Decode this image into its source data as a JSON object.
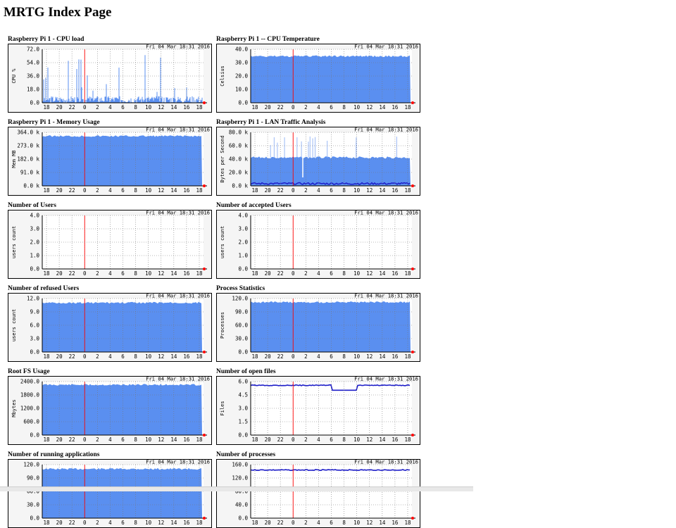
{
  "page": {
    "title": "MRTG Index Page"
  },
  "timestamp": "Fri 04 Mar 18:31 2016",
  "x_ticks": [
    "18",
    "20",
    "22",
    "0",
    "2",
    "4",
    "6",
    "8",
    "10",
    "12",
    "14",
    "16",
    "18"
  ],
  "colors": {
    "area": "#5a8ff0",
    "line": "#1d1dc8",
    "now_marker": "#ff0000",
    "grid": "#888888",
    "frame": "#000000"
  },
  "graphs": [
    {
      "title": "Raspberry Pi 1 - CPU load",
      "ylabel": "CPU %",
      "yticks": [
        "72.0",
        "54.0",
        "36.0",
        "18.0",
        "0.0"
      ],
      "style": "spiky",
      "level": 0.12
    },
    {
      "title": "Raspberry Pi 1 -- CPU Temperature",
      "ylabel": "Celsius",
      "yticks": [
        "40.0",
        "30.0",
        "20.0",
        "10.0",
        "0.0"
      ],
      "style": "area",
      "level": 0.87
    },
    {
      "title": "Raspberry Pi 1 - Memory Usage",
      "ylabel": "Mem MB",
      "yticks": [
        "364.0 k",
        "273.0 k",
        "182.0 k",
        "91.0 k",
        "0.0 k"
      ],
      "style": "area",
      "level": 0.93
    },
    {
      "title": "Raspberry Pi 1 - LAN Traffic Analysis",
      "ylabel": "Bytes per Second",
      "yticks": [
        "80.0 k",
        "60.0 k",
        "40.0 k",
        "20.0 k",
        "0.0 k"
      ],
      "style": "traffic",
      "level": 0.53
    },
    {
      "title": "Number of Users",
      "ylabel": "users count",
      "yticks": [
        "4.0",
        "3.0",
        "2.0",
        "1.0",
        "0.0"
      ],
      "style": "empty",
      "level": 0
    },
    {
      "title": "Number of accepted Users",
      "ylabel": "users count",
      "yticks": [
        "4.0",
        "3.0",
        "2.0",
        "1.0",
        "0.0"
      ],
      "style": "empty",
      "level": 0
    },
    {
      "title": "Number of refused Users",
      "ylabel": "users count",
      "yticks": [
        "12.0",
        "9.0",
        "6.0",
        "3.0",
        "0.0"
      ],
      "style": "area",
      "level": 0.92
    },
    {
      "title": "Process Statistics",
      "ylabel": "Processes",
      "yticks": [
        "120.0",
        "90.0",
        "60.0",
        "30.0",
        "0.0"
      ],
      "style": "area",
      "level": 0.93
    },
    {
      "title": "Root FS Usage",
      "ylabel": "Mbytes",
      "yticks": [
        "2400.0",
        "1800.0",
        "1200.0",
        "600.0",
        "0.0"
      ],
      "style": "area",
      "level": 0.94
    },
    {
      "title": "Number of open files",
      "ylabel": "Files",
      "yticks": [
        "6.0",
        "4.5",
        "3.0",
        "1.5",
        "0.0"
      ],
      "style": "line",
      "level": 0.93
    },
    {
      "title": "Number of running applications",
      "ylabel": "",
      "yticks": [
        "120.0",
        "90.0",
        "60.0",
        "30.0",
        "0.0"
      ],
      "style": "area",
      "level": 0.92
    },
    {
      "title": "Number of processes",
      "ylabel": "",
      "yticks": [
        "160.0",
        "120.0",
        "80.0",
        "40.0",
        "0.0"
      ],
      "style": "line",
      "level": 0.9
    }
  ]
}
